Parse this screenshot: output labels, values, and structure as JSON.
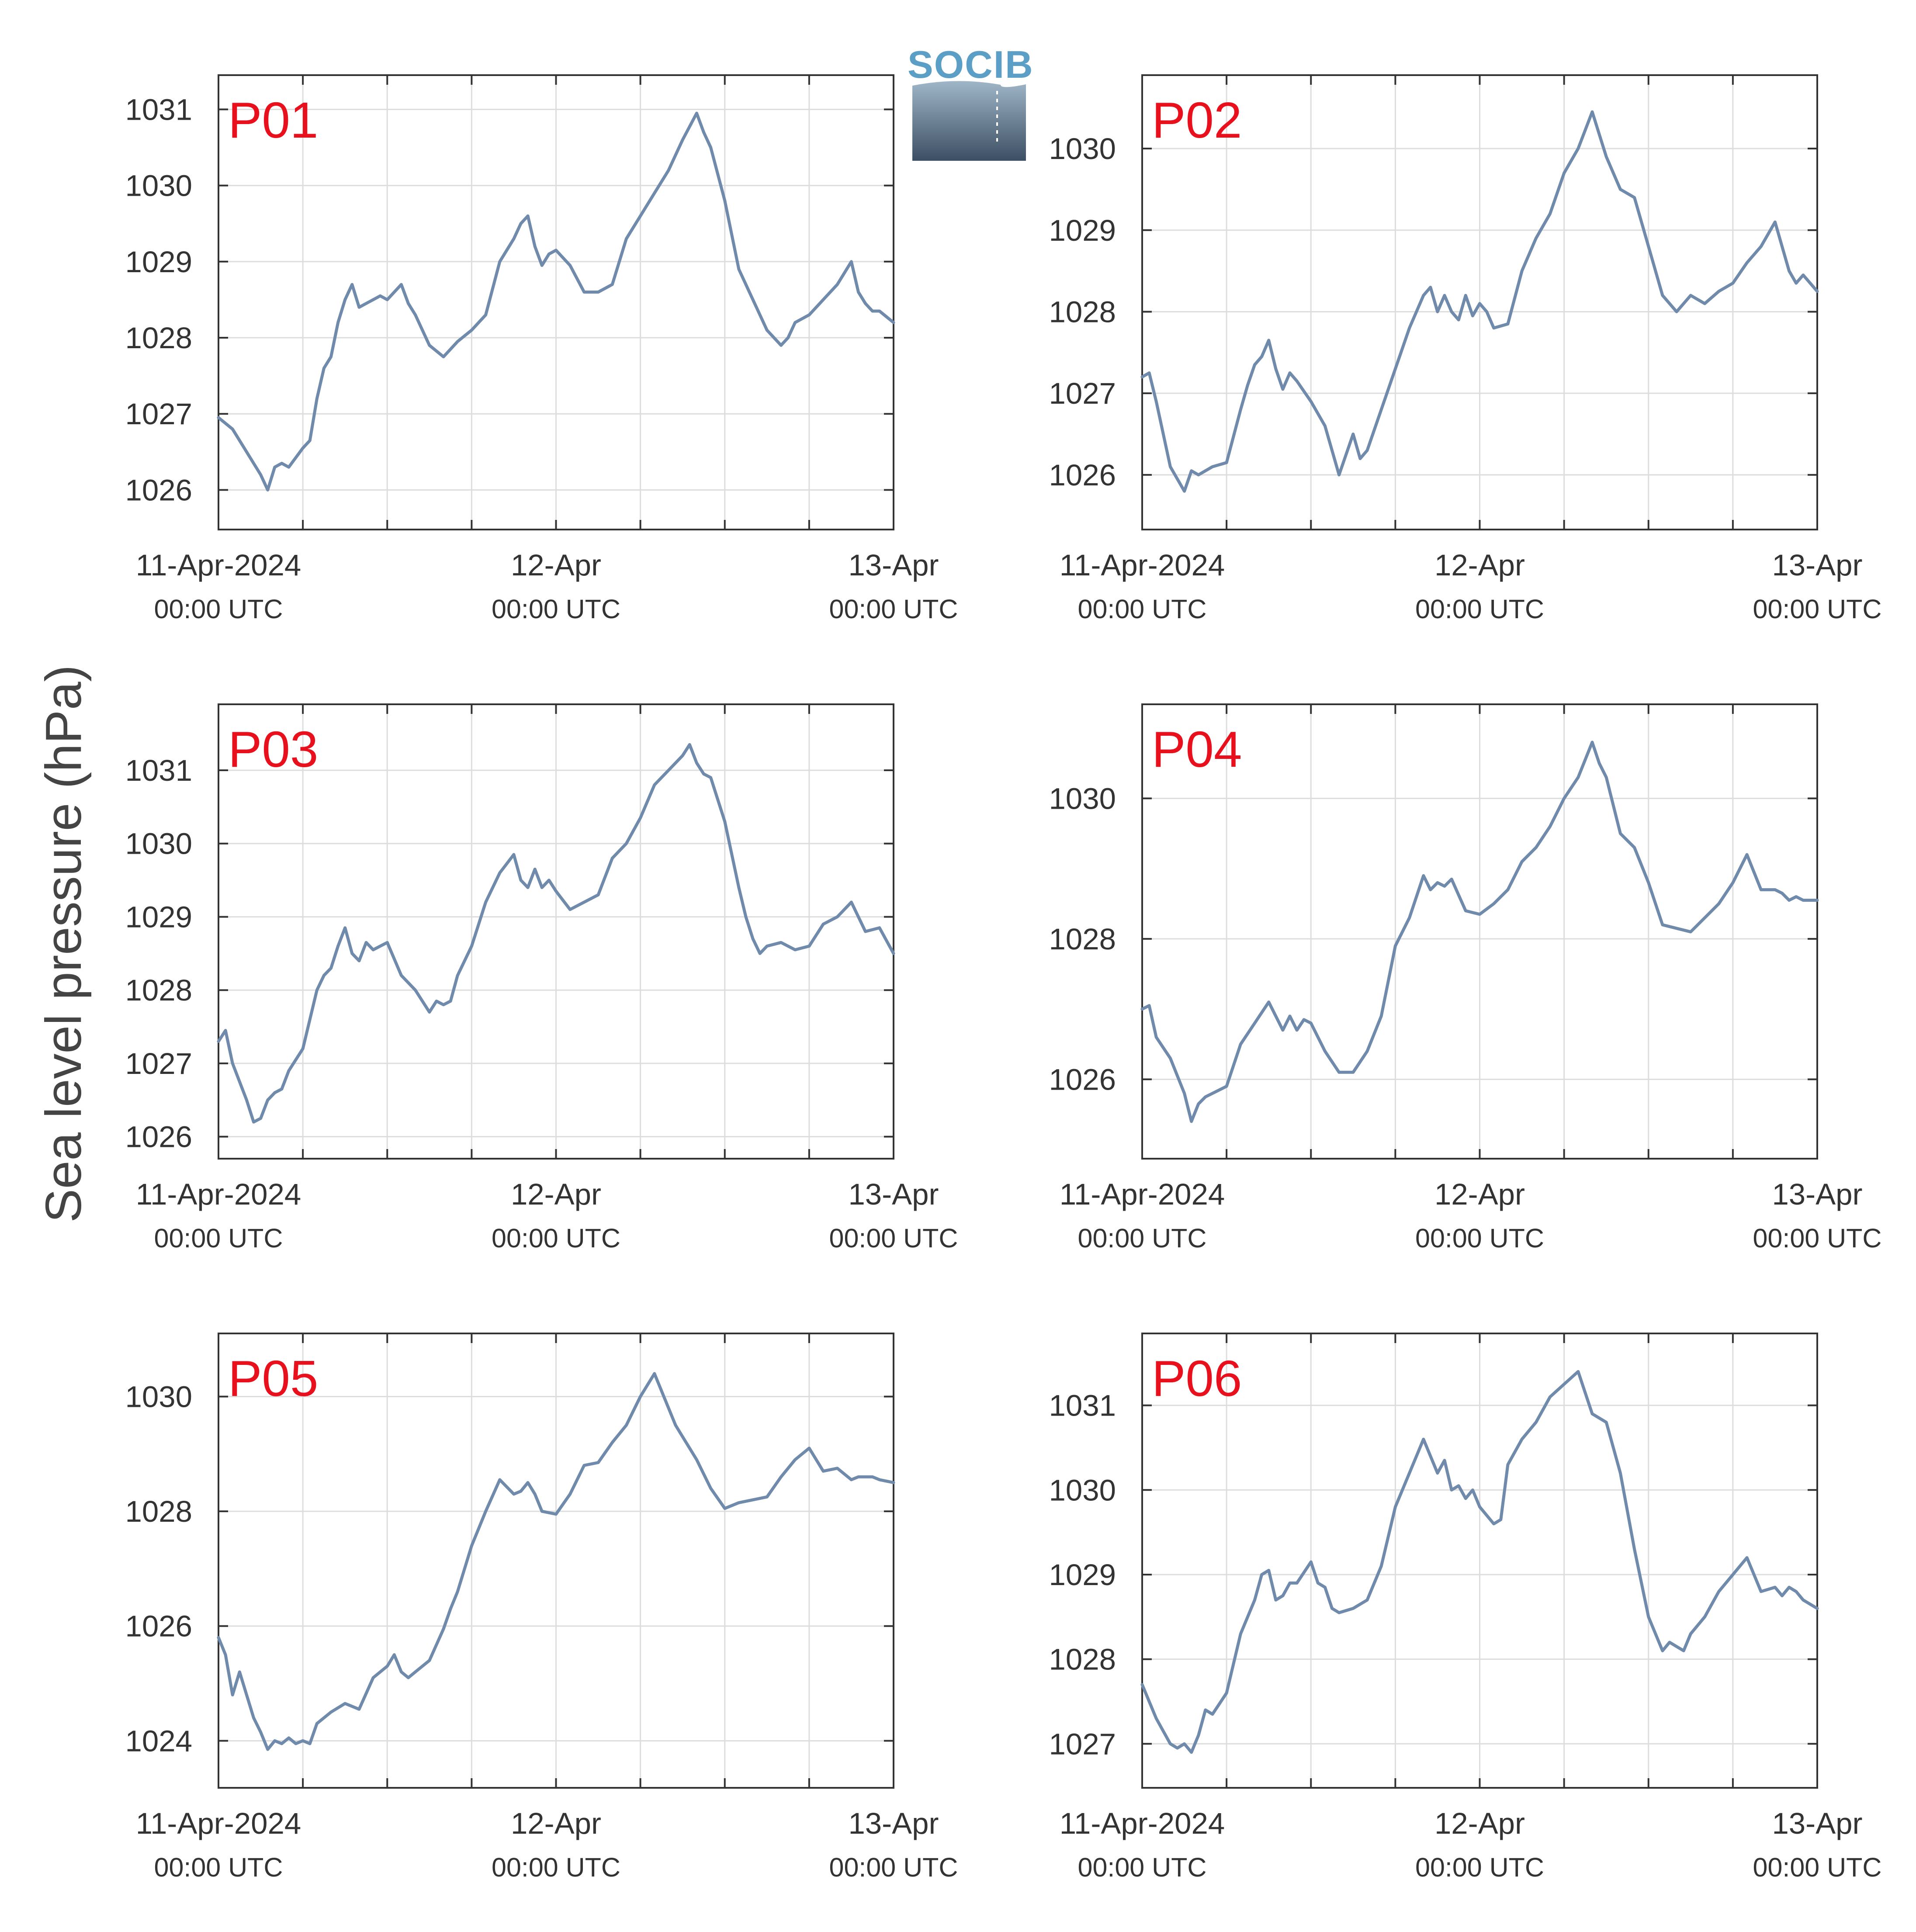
{
  "ylabel": "Sea level pressure (hPa)",
  "logo": {
    "text": "SOCIB"
  },
  "colors": {
    "line": "#6f8aaa",
    "title": "#e8101c",
    "grid": "#dddddd",
    "axis": "#333333"
  },
  "chart_data": [
    {
      "type": "line",
      "title": "P01",
      "x_unit": "hours since 11-Apr-2024 00:00 UTC",
      "xlim": [
        0,
        48
      ],
      "xticks": [
        {
          "value": 0,
          "label": "11-Apr-2024",
          "sublabel": "00:00 UTC"
        },
        {
          "value": 24,
          "label": "12-Apr",
          "sublabel": "00:00 UTC"
        },
        {
          "value": 48,
          "label": "13-Apr",
          "sublabel": "00:00 UTC"
        }
      ],
      "ylim": [
        1025.48,
        1031.45
      ],
      "yticks": [
        1026,
        1027,
        1028,
        1029,
        1030,
        1031
      ],
      "x": [
        0,
        1,
        2,
        3,
        3.5,
        4,
        4.5,
        5,
        6,
        6.5,
        7,
        7.5,
        8,
        8.5,
        9,
        9.5,
        10,
        10.5,
        11,
        11.5,
        12,
        13,
        13.5,
        14,
        15,
        16,
        17,
        18,
        19,
        20,
        21,
        21.5,
        22,
        22.5,
        23,
        23.5,
        24,
        25,
        26,
        27,
        28,
        29,
        30,
        31,
        32,
        32.5,
        33,
        34,
        34.5,
        35,
        36,
        37,
        38,
        38.5,
        39,
        40,
        40.5,
        41,
        42,
        43,
        44,
        45,
        45.5,
        46,
        46.5,
        47,
        48
      ],
      "series": [
        {
          "values": [
            1026.95,
            1026.8,
            1026.5,
            1026.2,
            1026.0,
            1026.3,
            1026.35,
            1026.3,
            1026.55,
            1026.65,
            1027.2,
            1027.6,
            1027.75,
            1028.2,
            1028.5,
            1028.7,
            1028.4,
            1028.45,
            1028.5,
            1028.55,
            1028.5,
            1028.7,
            1028.45,
            1028.3,
            1027.9,
            1027.75,
            1027.95,
            1028.1,
            1028.3,
            1029.0,
            1029.3,
            1029.5,
            1029.6,
            1029.2,
            1028.95,
            1029.1,
            1029.15,
            1028.95,
            1028.6,
            1028.6,
            1028.7,
            1029.3,
            1029.6,
            1029.9,
            1030.2,
            1030.4,
            1030.6,
            1030.95,
            1030.7,
            1030.5,
            1029.8,
            1028.9,
            1028.5,
            1028.3,
            1028.1,
            1027.9,
            1028.0,
            1028.2,
            1028.3,
            1028.5,
            1028.7,
            1029.0,
            1028.6,
            1028.45,
            1028.35,
            1028.35,
            1028.2
          ]
        }
      ]
    },
    {
      "type": "line",
      "title": "P02",
      "x_unit": "hours since 11-Apr-2024 00:00 UTC",
      "xlim": [
        0,
        48
      ],
      "xticks": [
        {
          "value": 0,
          "label": "11-Apr-2024",
          "sublabel": "00:00 UTC"
        },
        {
          "value": 24,
          "label": "12-Apr",
          "sublabel": "00:00 UTC"
        },
        {
          "value": 48,
          "label": "13-Apr",
          "sublabel": "00:00 UTC"
        }
      ],
      "ylim": [
        1025.33,
        1030.9
      ],
      "yticks": [
        1026,
        1027,
        1028,
        1029,
        1030
      ],
      "x": [
        0,
        0.5,
        1,
        1.5,
        2,
        3,
        3.5,
        4,
        5,
        6,
        7,
        7.5,
        8,
        8.5,
        9,
        9.5,
        10,
        10.5,
        11,
        12,
        13,
        14,
        15,
        15.5,
        16,
        16.5,
        17,
        18,
        19,
        20,
        20.5,
        21,
        21.5,
        22,
        22.5,
        23,
        23.5,
        24,
        24.5,
        25,
        26,
        27,
        28,
        29,
        30,
        31,
        32,
        33,
        34,
        35,
        36,
        37,
        38,
        39,
        40,
        41,
        42,
        43,
        44,
        45,
        46,
        46.5,
        47,
        48
      ],
      "series": [
        {
          "values": [
            1027.2,
            1027.25,
            1026.9,
            1026.5,
            1026.1,
            1025.8,
            1026.05,
            1026.0,
            1026.1,
            1026.15,
            1026.8,
            1027.1,
            1027.35,
            1027.45,
            1027.65,
            1027.3,
            1027.05,
            1027.25,
            1027.15,
            1026.9,
            1026.6,
            1026.0,
            1026.5,
            1026.2,
            1026.3,
            1026.55,
            1026.8,
            1027.3,
            1027.8,
            1028.2,
            1028.3,
            1028.0,
            1028.2,
            1028.0,
            1027.9,
            1028.2,
            1027.95,
            1028.1,
            1028.0,
            1027.8,
            1027.85,
            1028.5,
            1028.9,
            1029.2,
            1029.7,
            1030.0,
            1030.45,
            1029.9,
            1029.5,
            1029.4,
            1028.8,
            1028.2,
            1028.0,
            1028.2,
            1028.1,
            1028.25,
            1028.35,
            1028.6,
            1028.8,
            1029.1,
            1028.5,
            1028.35,
            1028.45,
            1028.25
          ]
        }
      ]
    },
    {
      "type": "line",
      "title": "P03",
      "x_unit": "hours since 11-Apr-2024 00:00 UTC",
      "xlim": [
        0,
        48
      ],
      "xticks": [
        {
          "value": 0,
          "label": "11-Apr-2024",
          "sublabel": "00:00 UTC"
        },
        {
          "value": 24,
          "label": "12-Apr",
          "sublabel": "00:00 UTC"
        },
        {
          "value": 48,
          "label": "13-Apr",
          "sublabel": "00:00 UTC"
        }
      ],
      "ylim": [
        1025.7,
        1031.9
      ],
      "yticks": [
        1026,
        1027,
        1028,
        1029,
        1030,
        1031
      ],
      "x": [
        0,
        0.5,
        1,
        2,
        2.5,
        3,
        3.5,
        4,
        4.5,
        5,
        6,
        7,
        7.5,
        8,
        8.5,
        9,
        9.5,
        10,
        10.5,
        11,
        11.5,
        12,
        13,
        14,
        15,
        15.5,
        16,
        16.5,
        17,
        18,
        19,
        20,
        21,
        21.5,
        22,
        22.5,
        23,
        23.5,
        24,
        25,
        26,
        27,
        28,
        29,
        30,
        31,
        32,
        33,
        33.5,
        34,
        34.5,
        35,
        36,
        37,
        37.5,
        38,
        38.5,
        39,
        40,
        41,
        42,
        43,
        44,
        45,
        46,
        47,
        48
      ],
      "series": [
        {
          "values": [
            1027.3,
            1027.45,
            1027.0,
            1026.5,
            1026.2,
            1026.25,
            1026.5,
            1026.6,
            1026.65,
            1026.9,
            1027.2,
            1028.0,
            1028.2,
            1028.3,
            1028.6,
            1028.85,
            1028.5,
            1028.4,
            1028.65,
            1028.55,
            1028.6,
            1028.65,
            1028.2,
            1028.0,
            1027.7,
            1027.85,
            1027.8,
            1027.85,
            1028.2,
            1028.6,
            1029.2,
            1029.6,
            1029.85,
            1029.5,
            1029.4,
            1029.65,
            1029.4,
            1029.5,
            1029.35,
            1029.1,
            1029.2,
            1029.3,
            1029.8,
            1030.0,
            1030.35,
            1030.8,
            1031.0,
            1031.2,
            1031.35,
            1031.1,
            1030.95,
            1030.9,
            1030.3,
            1029.4,
            1029.0,
            1028.7,
            1028.5,
            1028.6,
            1028.65,
            1028.55,
            1028.6,
            1028.9,
            1029.0,
            1029.2,
            1028.8,
            1028.85,
            1028.5
          ]
        }
      ]
    },
    {
      "type": "line",
      "title": "P04",
      "x_unit": "hours since 11-Apr-2024 00:00 UTC",
      "xlim": [
        0,
        48
      ],
      "xticks": [
        {
          "value": 0,
          "label": "11-Apr-2024",
          "sublabel": "00:00 UTC"
        },
        {
          "value": 24,
          "label": "12-Apr",
          "sublabel": "00:00 UTC"
        },
        {
          "value": 48,
          "label": "13-Apr",
          "sublabel": "00:00 UTC"
        }
      ],
      "ylim": [
        1024.87,
        1031.34
      ],
      "yticks": [
        1026,
        1028,
        1030
      ],
      "x": [
        0,
        0.5,
        1,
        2,
        3,
        3.5,
        4,
        4.5,
        5,
        6,
        7,
        8,
        9,
        10,
        10.5,
        11,
        11.5,
        12,
        13,
        14,
        15,
        16,
        17,
        18,
        19,
        20,
        20.5,
        21,
        21.5,
        22,
        23,
        24,
        25,
        26,
        27,
        28,
        29,
        30,
        31,
        32,
        32.5,
        33,
        34,
        35,
        36,
        37,
        38,
        39,
        40,
        41,
        42,
        43,
        44,
        45,
        45.5,
        46,
        46.5,
        47,
        48
      ],
      "series": [
        {
          "values": [
            1027.0,
            1027.05,
            1026.6,
            1026.3,
            1025.8,
            1025.4,
            1025.65,
            1025.75,
            1025.8,
            1025.9,
            1026.5,
            1026.8,
            1027.1,
            1026.7,
            1026.9,
            1026.7,
            1026.85,
            1026.8,
            1026.4,
            1026.1,
            1026.1,
            1026.4,
            1026.9,
            1027.9,
            1028.3,
            1028.9,
            1028.7,
            1028.8,
            1028.75,
            1028.85,
            1028.4,
            1028.35,
            1028.5,
            1028.7,
            1029.1,
            1029.3,
            1029.6,
            1030.0,
            1030.3,
            1030.8,
            1030.5,
            1030.3,
            1029.5,
            1029.3,
            1028.8,
            1028.2,
            1028.15,
            1028.1,
            1028.3,
            1028.5,
            1028.8,
            1029.2,
            1028.7,
            1028.7,
            1028.65,
            1028.55,
            1028.6,
            1028.55,
            1028.55
          ]
        }
      ]
    },
    {
      "type": "line",
      "title": "P05",
      "x_unit": "hours since 11-Apr-2024 00:00 UTC",
      "xlim": [
        0,
        48
      ],
      "xticks": [
        {
          "value": 0,
          "label": "11-Apr-2024",
          "sublabel": "00:00 UTC"
        },
        {
          "value": 24,
          "label": "12-Apr",
          "sublabel": "00:00 UTC"
        },
        {
          "value": 48,
          "label": "13-Apr",
          "sublabel": "00:00 UTC"
        }
      ],
      "ylim": [
        1023.18,
        1031.1
      ],
      "yticks": [
        1024,
        1026,
        1028,
        1030
      ],
      "x": [
        0,
        0.5,
        1,
        1.5,
        2,
        2.5,
        3,
        3.5,
        4,
        4.5,
        5,
        5.5,
        6,
        6.5,
        7,
        8,
        9,
        10,
        11,
        12,
        12.5,
        13,
        13.5,
        14,
        15,
        16,
        16.5,
        17,
        18,
        19,
        20,
        21,
        21.5,
        22,
        22.5,
        23,
        24,
        25,
        26,
        27,
        28,
        29,
        30,
        31,
        32,
        32.5,
        33,
        34,
        35,
        36,
        37,
        38,
        39,
        40,
        41,
        42,
        43,
        44,
        45,
        45.5,
        46,
        46.5,
        47,
        48
      ],
      "series": [
        {
          "values": [
            1025.8,
            1025.5,
            1024.8,
            1025.2,
            1024.8,
            1024.4,
            1024.15,
            1023.85,
            1024.0,
            1023.95,
            1024.05,
            1023.95,
            1024.0,
            1023.95,
            1024.3,
            1024.5,
            1024.65,
            1024.55,
            1025.1,
            1025.3,
            1025.5,
            1025.2,
            1025.1,
            1025.2,
            1025.4,
            1025.95,
            1026.3,
            1026.6,
            1027.4,
            1028.0,
            1028.55,
            1028.3,
            1028.35,
            1028.5,
            1028.3,
            1028.0,
            1027.95,
            1028.3,
            1028.8,
            1028.85,
            1029.2,
            1029.5,
            1030.0,
            1030.4,
            1029.8,
            1029.5,
            1029.3,
            1028.9,
            1028.4,
            1028.05,
            1028.15,
            1028.2,
            1028.25,
            1028.6,
            1028.9,
            1029.1,
            1028.7,
            1028.75,
            1028.55,
            1028.6,
            1028.6,
            1028.6,
            1028.55,
            1028.5
          ]
        }
      ]
    },
    {
      "type": "line",
      "title": "P06",
      "x_unit": "hours since 11-Apr-2024 00:00 UTC",
      "xlim": [
        0,
        48
      ],
      "xticks": [
        {
          "value": 0,
          "label": "11-Apr-2024",
          "sublabel": "00:00 UTC"
        },
        {
          "value": 24,
          "label": "12-Apr",
          "sublabel": "00:00 UTC"
        },
        {
          "value": 48,
          "label": "13-Apr",
          "sublabel": "00:00 UTC"
        }
      ],
      "ylim": [
        1026.48,
        1031.85
      ],
      "yticks": [
        1027,
        1028,
        1029,
        1030,
        1031
      ],
      "x": [
        0,
        0.5,
        1,
        2,
        2.5,
        3,
        3.5,
        4,
        4.5,
        5,
        6,
        7,
        7.5,
        8,
        8.5,
        9,
        9.5,
        10,
        10.5,
        11,
        12,
        12.5,
        13,
        13.5,
        14,
        15,
        16,
        17,
        18,
        19,
        20,
        21,
        21.5,
        22,
        22.5,
        23,
        23.5,
        24,
        25,
        25.5,
        26,
        27,
        28,
        29,
        30,
        31,
        32,
        33,
        33.5,
        34,
        35,
        36,
        37,
        37.5,
        38,
        38.5,
        39,
        40,
        41,
        42,
        43,
        44,
        45,
        45.5,
        46,
        46.5,
        47,
        48
      ],
      "series": [
        {
          "values": [
            1027.7,
            1027.5,
            1027.3,
            1027.0,
            1026.95,
            1027.0,
            1026.9,
            1027.1,
            1027.4,
            1027.35,
            1027.6,
            1028.3,
            1028.5,
            1028.7,
            1029.0,
            1029.05,
            1028.7,
            1028.75,
            1028.9,
            1028.9,
            1029.15,
            1028.9,
            1028.85,
            1028.6,
            1028.55,
            1028.6,
            1028.7,
            1029.1,
            1029.8,
            1030.2,
            1030.6,
            1030.2,
            1030.35,
            1030.0,
            1030.05,
            1029.9,
            1030.0,
            1029.8,
            1029.6,
            1029.65,
            1030.3,
            1030.6,
            1030.8,
            1031.1,
            1031.25,
            1031.4,
            1030.9,
            1030.8,
            1030.5,
            1030.2,
            1029.3,
            1028.5,
            1028.1,
            1028.2,
            1028.15,
            1028.1,
            1028.3,
            1028.5,
            1028.8,
            1029.0,
            1029.2,
            1028.8,
            1028.85,
            1028.75,
            1028.85,
            1028.8,
            1028.7,
            1028.6
          ]
        }
      ]
    }
  ]
}
